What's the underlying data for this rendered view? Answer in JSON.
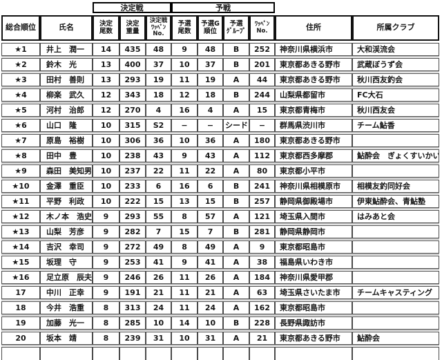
{
  "table": {
    "groups": {
      "final": "決定戦",
      "preliminary": "予戦"
    },
    "columns": [
      "総合順位",
      "氏名",
      "決定\n尾数",
      "決定\n重量",
      "決定戦\nﾜｯﾍﾟﾝ\nNo.",
      "予選\n尾数",
      "予選G\n順位",
      "予選\nｸﾞﾙｰﾌﾟ",
      "ﾜｯﾍﾟﾝ\nNo.",
      "住所",
      "所属クラブ"
    ],
    "rows": [
      [
        "★1",
        "井上　潤一",
        "14",
        "435",
        "48",
        "9",
        "48",
        "B",
        "252",
        "神奈川県横浜市",
        "大和渓流会"
      ],
      [
        "★2",
        "鈴木　光",
        "13",
        "400",
        "37",
        "10",
        "37",
        "B",
        "201",
        "東京都あきる野市",
        "武蔵ぼうず会"
      ],
      [
        "★3",
        "田村　善則",
        "13",
        "293",
        "19",
        "11",
        "19",
        "A",
        "44",
        "東京都あきる野市",
        "秋川西友釣会"
      ],
      [
        "★4",
        "柳楽　武久",
        "12",
        "343",
        "18",
        "12",
        "18",
        "B",
        "244",
        "山梨県都留市",
        "FC大石"
      ],
      [
        "★5",
        "河村　治郎",
        "12",
        "270",
        "4",
        "16",
        "4",
        "A",
        "15",
        "東京都青梅市",
        "秋川西友会"
      ],
      [
        "★6",
        "山口　隆",
        "10",
        "315",
        "S2",
        "−",
        "−",
        "シード",
        "−",
        "群馬県渋川市",
        "チーム鮎香"
      ],
      [
        "★7",
        "原島　裕樹",
        "10",
        "306",
        "36",
        "10",
        "36",
        "A",
        "180",
        "東京都あきる野市",
        ""
      ],
      [
        "★8",
        "田中　豊",
        "10",
        "238",
        "43",
        "9",
        "43",
        "A",
        "112",
        "東京都西多摩郡",
        "鮎酔会　ぎょくすいかい"
      ],
      [
        "★9",
        "森田　美知男",
        "10",
        "237",
        "22",
        "11",
        "22",
        "A",
        "80",
        "東京都小平市",
        ""
      ],
      [
        "★10",
        "金澤　重臣",
        "10",
        "233",
        "6",
        "16",
        "6",
        "B",
        "241",
        "神奈川県相模原市",
        "相模友釣同好会"
      ],
      [
        "★11",
        "平野　利政",
        "10",
        "222",
        "15",
        "13",
        "15",
        "B",
        "257",
        "静岡県御殿場市",
        "伊東鮎酔会、青鮎塾"
      ],
      [
        "★12",
        "木ノ本　浩史",
        "9",
        "293",
        "55",
        "8",
        "57",
        "A",
        "121",
        "埼玉県入間市",
        "はみあと会"
      ],
      [
        "★13",
        "山梨　芳彦",
        "9",
        "282",
        "7",
        "15",
        "7",
        "B",
        "281",
        "静岡県静岡市",
        ""
      ],
      [
        "★14",
        "吉沢　幸司",
        "9",
        "272",
        "49",
        "8",
        "49",
        "A",
        "9",
        "東京都昭島市",
        ""
      ],
      [
        "★15",
        "坂理　守",
        "9",
        "253",
        "41",
        "9",
        "41",
        "A",
        "38",
        "福島県いわき市",
        ""
      ],
      [
        "★16",
        "足立原　辰夫",
        "9",
        "246",
        "26",
        "11",
        "26",
        "A",
        "184",
        "神奈川県愛甲郡",
        ""
      ],
      [
        "17",
        "中川　正幸",
        "9",
        "191",
        "21",
        "11",
        "21",
        "A",
        "63",
        "埼玉県さいたま市",
        "チームキャスティング"
      ],
      [
        "18",
        "今井　浩重",
        "8",
        "313",
        "24",
        "11",
        "24",
        "A",
        "162",
        "東京都昭島市",
        ""
      ],
      [
        "19",
        "加藤　光一",
        "8",
        "285",
        "10",
        "14",
        "10",
        "B",
        "228",
        "長野県諏訪市",
        ""
      ],
      [
        "20",
        "坂本　靖",
        "8",
        "239",
        "31",
        "10",
        "31",
        "A",
        "21",
        "東京都あきる野市",
        "鮎酔会"
      ]
    ]
  }
}
